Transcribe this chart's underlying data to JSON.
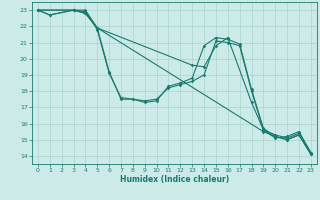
{
  "xlabel": "Humidex (Indice chaleur)",
  "xlim": [
    -0.5,
    23.5
  ],
  "ylim": [
    13.5,
    23.5
  ],
  "xticks": [
    0,
    1,
    2,
    3,
    4,
    5,
    6,
    7,
    8,
    9,
    10,
    11,
    12,
    13,
    14,
    15,
    16,
    17,
    18,
    19,
    20,
    21,
    22,
    23
  ],
  "yticks": [
    14,
    15,
    16,
    17,
    18,
    19,
    20,
    21,
    22,
    23
  ],
  "bg_color": "#cceae7",
  "grid_color": "#aad4d0",
  "line_color": "#1a7a6e",
  "lines": [
    {
      "x": [
        0,
        1,
        3,
        4,
        5,
        6,
        7,
        8,
        9,
        10,
        11,
        12,
        13,
        14,
        15,
        16,
        17,
        18,
        19,
        20,
        21,
        22,
        23
      ],
      "y": [
        23,
        22.7,
        23,
        23,
        21.9,
        19.2,
        17.5,
        17.5,
        17.3,
        17.4,
        18.3,
        18.5,
        18.8,
        20.8,
        21.3,
        21.2,
        20.9,
        18.1,
        15.7,
        15.2,
        15.0,
        15.3,
        14.1
      ]
    },
    {
      "x": [
        0,
        1,
        3,
        4,
        5,
        6,
        7,
        8,
        9,
        10,
        11,
        12,
        13,
        14,
        15,
        16,
        17,
        18,
        19,
        20,
        21,
        22,
        23
      ],
      "y": [
        23,
        22.7,
        23,
        22.9,
        21.8,
        19.1,
        17.6,
        17.5,
        17.4,
        17.5,
        18.2,
        18.4,
        18.6,
        19.0,
        21.1,
        21.0,
        20.8,
        18.0,
        15.6,
        15.1,
        15.2,
        15.5,
        14.2
      ]
    },
    {
      "x": [
        0,
        3,
        4,
        5,
        13,
        14,
        15,
        16,
        18,
        19,
        20,
        21,
        22,
        23
      ],
      "y": [
        23,
        23,
        22.8,
        21.9,
        19.6,
        19.5,
        20.8,
        21.3,
        17.3,
        15.6,
        15.3,
        15.1,
        15.4,
        14.2
      ]
    },
    {
      "x": [
        0,
        3,
        4,
        5,
        19,
        20,
        21,
        22,
        23
      ],
      "y": [
        23,
        23,
        22.8,
        21.9,
        15.5,
        15.2,
        15.0,
        15.3,
        14.1
      ]
    }
  ]
}
